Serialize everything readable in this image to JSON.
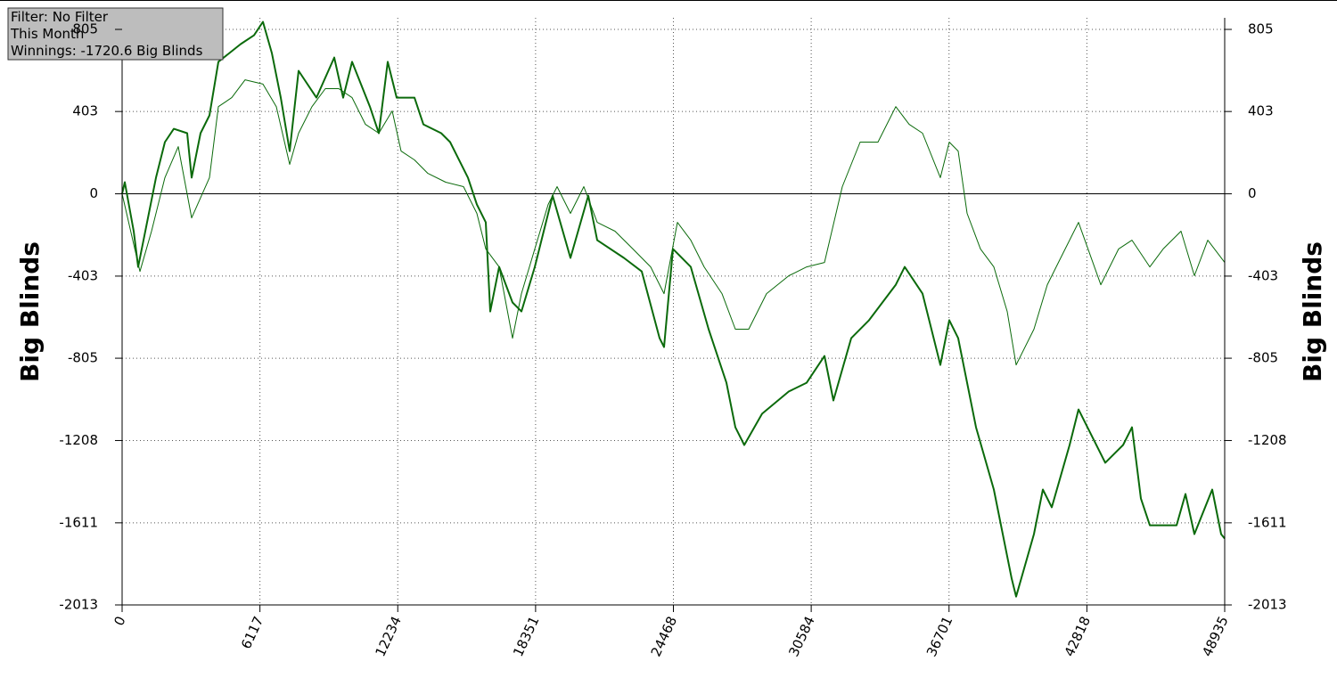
{
  "chart_data": {
    "type": "line",
    "annotations": [
      "Filter: No Filter",
      "This Month",
      "Winnings: -1720.6 Big Blinds"
    ],
    "ylabel": "Big Blinds",
    "xlim": [
      0,
      48935
    ],
    "xticks": [
      0,
      6117,
      12234,
      18351,
      24468,
      30584,
      36701,
      42818,
      48935
    ],
    "ylim": [
      -2013,
      805
    ],
    "yticks": [
      -2013,
      -1611,
      -1208,
      -805,
      -403,
      0,
      403,
      805
    ],
    "grid": true,
    "series": [
      {
        "color": "#0b6a0b",
        "line_width": 2,
        "x": [
          0,
          119,
          514,
          712,
          1108,
          1503,
          1899,
          2294,
          2888,
          3086,
          3481,
          3877,
          4272,
          5261,
          5855,
          6250,
          6646,
          7042,
          7437,
          7833,
          8624,
          9415,
          9811,
          10206,
          10998,
          11393,
          11789,
          12184,
          12976,
          13371,
          14162,
          14558,
          15349,
          15745,
          16140,
          16338,
          16734,
          17327,
          17723,
          18316,
          19108,
          19899,
          20690,
          21086,
          22272,
          23064,
          23855,
          24053,
          24448,
          25240,
          26031,
          26822,
          27218,
          27613,
          28404,
          29591,
          30382,
          31173,
          31569,
          32360,
          33151,
          34338,
          34734,
          35525,
          36316,
          36712,
          37107,
          37899,
          38690,
          39481,
          39679,
          40470,
          40866,
          41262,
          42053,
          42449,
          43635,
          44426,
          44822,
          45218,
          45613,
          46800,
          47196,
          47591,
          48382,
          48778,
          48935
        ],
        "values": [
          0,
          57,
          -183,
          -358,
          -140,
          79,
          253,
          318,
          297,
          79,
          297,
          384,
          646,
          733,
          776,
          842,
          689,
          471,
          209,
          602,
          471,
          667,
          471,
          646,
          427,
          297,
          646,
          471,
          471,
          340,
          297,
          253,
          79,
          -52,
          -140,
          -576,
          -358,
          -532,
          -576,
          -358,
          -9,
          -314,
          -9,
          -227,
          -314,
          -380,
          -707,
          -750,
          -270,
          -358,
          -663,
          -925,
          -1143,
          -1230,
          -1077,
          -968,
          -925,
          -794,
          -1012,
          -707,
          -619,
          -445,
          -358,
          -489,
          -838,
          -619,
          -707,
          -1143,
          -1448,
          -1884,
          -1972,
          -1666,
          -1448,
          -1535,
          -1230,
          -1056,
          -1317,
          -1230,
          -1143,
          -1492,
          -1623,
          -1623,
          -1470,
          -1666,
          -1448,
          -1666,
          -1688
        ]
      },
      {
        "color": "#0b6a0b",
        "line_width": 1,
        "x": [
          0,
          791,
          1305,
          1899,
          2493,
          3086,
          3877,
          4272,
          4866,
          5459,
          6250,
          6844,
          7437,
          7833,
          8426,
          9020,
          9613,
          10206,
          10800,
          11393,
          11987,
          12382,
          12976,
          13569,
          14360,
          15151,
          15745,
          16140,
          16734,
          17327,
          17723,
          18316,
          18910,
          19306,
          19899,
          20492,
          21086,
          21877,
          22668,
          23459,
          24053,
          24646,
          25240,
          25833,
          26624,
          27218,
          27811,
          28602,
          29591,
          30382,
          31173,
          31964,
          32755,
          33547,
          34338,
          34931,
          35525,
          36316,
          36712,
          37107,
          37503,
          38097,
          38690,
          39284,
          39679,
          40470,
          41064,
          41657,
          42449,
          43437,
          44228,
          44822,
          45613,
          46207,
          46998,
          47591,
          48185,
          48935
        ],
        "values": [
          0,
          -380,
          -183,
          79,
          231,
          -118,
          79,
          427,
          471,
          558,
          537,
          427,
          144,
          297,
          427,
          515,
          515,
          471,
          340,
          297,
          406,
          209,
          166,
          100,
          57,
          35,
          -96,
          -270,
          -358,
          -707,
          -489,
          -270,
          -52,
          35,
          -96,
          35,
          -140,
          -183,
          -270,
          -358,
          -489,
          -140,
          -227,
          -358,
          -489,
          -663,
          -663,
          -489,
          -401,
          -358,
          -336,
          35,
          253,
          253,
          427,
          340,
          297,
          79,
          253,
          209,
          -96,
          -270,
          -358,
          -576,
          -838,
          -663,
          -445,
          -314,
          -140,
          -445,
          -270,
          -227,
          -358,
          -270,
          -183,
          -401,
          -227,
          -336
        ]
      }
    ]
  }
}
